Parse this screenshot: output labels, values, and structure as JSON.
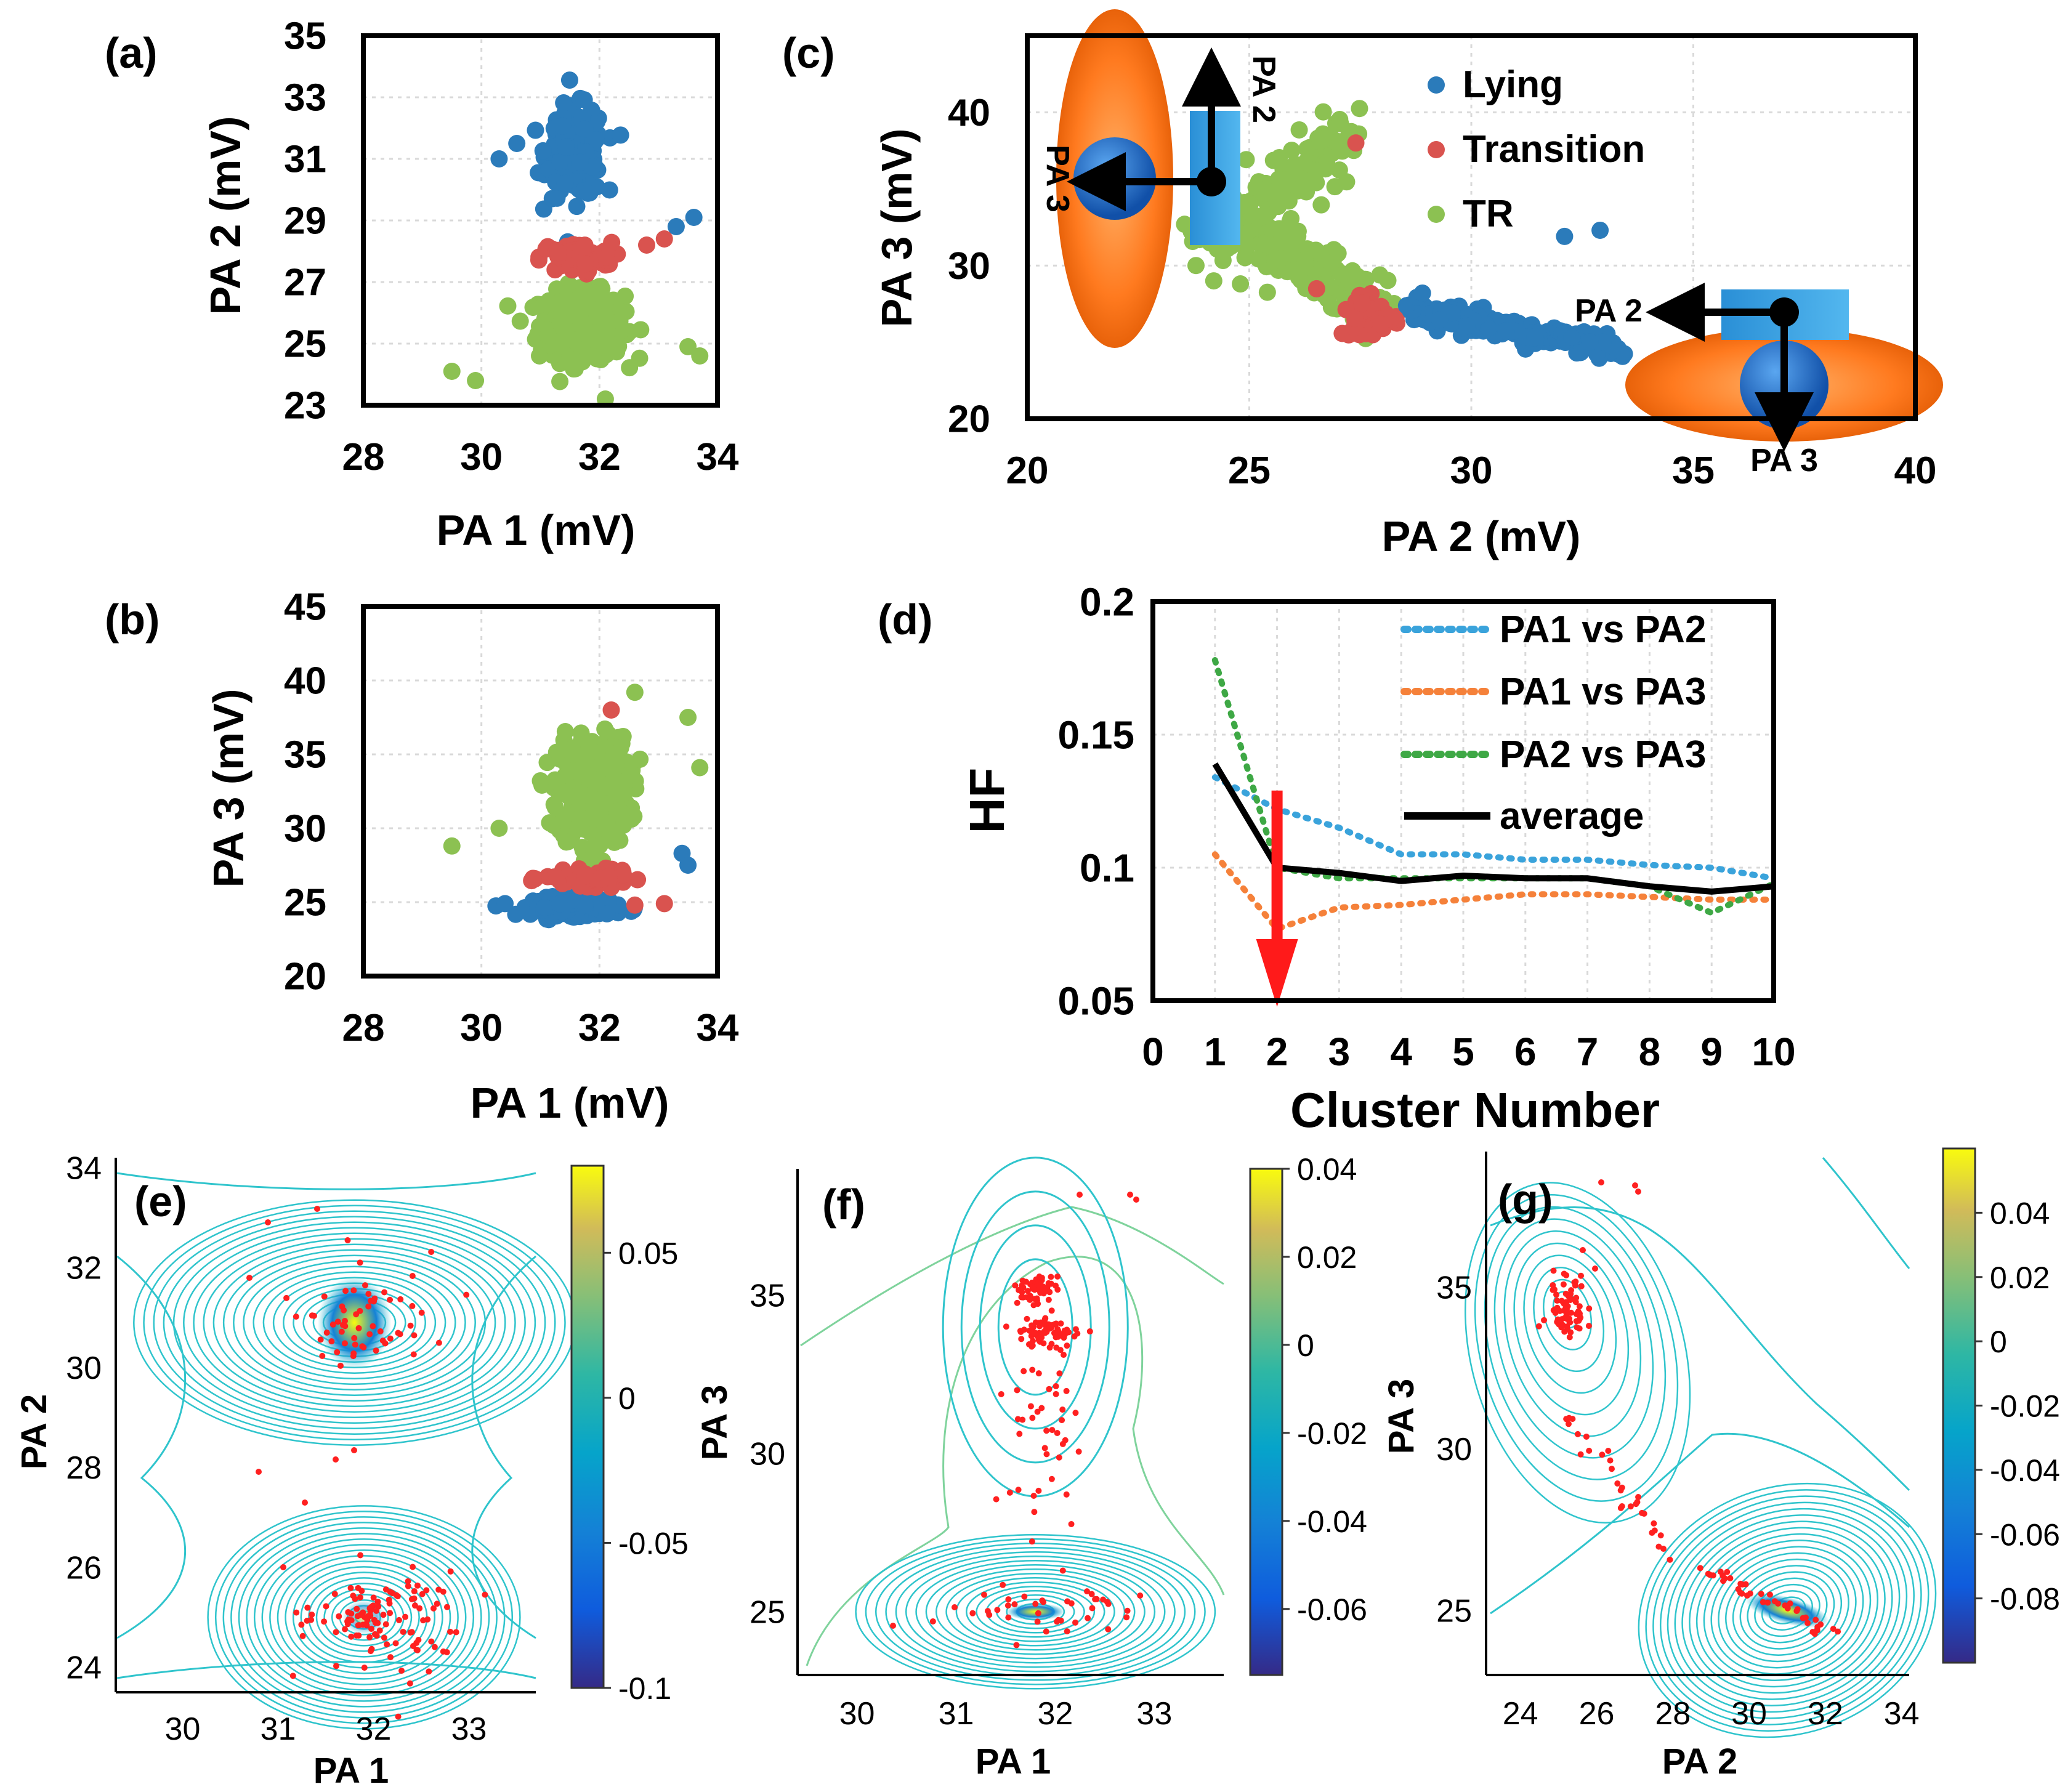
{
  "colors": {
    "lying": "#2b7bba",
    "transition": "#d9534f",
    "tr": "#8cc152",
    "pa1pa2": "#3aa3db",
    "pa1pa3": "#f5813a",
    "pa2pa3": "#3ea845",
    "average": "#000000",
    "arrow": "#ff1a1a",
    "contour": "#2fc4cc",
    "grid": "#d9d9d9"
  },
  "chart_data": [
    {
      "panel": "(a)",
      "type": "scatter",
      "xlabel": "PA 1 (mV)",
      "ylabel": "PA 2 (mV)",
      "xlim": [
        28,
        34
      ],
      "ylim": [
        23,
        35
      ],
      "xticks": [
        "28",
        "30",
        "32",
        "34"
      ],
      "yticks": [
        "23",
        "25",
        "27",
        "29",
        "31",
        "33",
        "35"
      ],
      "clusters": [
        {
          "name": "Lying",
          "color": "lying",
          "center": [
            31.6,
            31.2
          ],
          "spread": [
            0.4,
            1.2
          ],
          "count": 200,
          "extra": [
            [
              30.3,
              31.0
            ],
            [
              30.6,
              31.5
            ],
            [
              33.3,
              28.8
            ],
            [
              33.6,
              29.1
            ]
          ]
        },
        {
          "name": "Transition",
          "color": "transition",
          "center": [
            31.6,
            27.8
          ],
          "spread": [
            0.5,
            0.4
          ],
          "count": 90,
          "extra": [
            [
              32.8,
              28.2
            ],
            [
              33.1,
              28.4
            ]
          ]
        },
        {
          "name": "TR",
          "color": "tr",
          "center": [
            31.7,
            25.6
          ],
          "spread": [
            0.6,
            0.9
          ],
          "count": 340,
          "extra": [
            [
              29.5,
              24.1
            ],
            [
              29.9,
              23.8
            ],
            [
              33.5,
              24.9
            ],
            [
              33.7,
              24.6
            ],
            [
              32.1,
              23.2
            ]
          ]
        }
      ]
    },
    {
      "panel": "(b)",
      "type": "scatter",
      "xlabel": "PA 1 (mV)",
      "ylabel": "PA 3 (mV)",
      "xlim": [
        28,
        34
      ],
      "ylim": [
        20,
        45
      ],
      "xticks": [
        "28",
        "30",
        "32",
        "34"
      ],
      "yticks": [
        "20",
        "25",
        "30",
        "35",
        "40",
        "45"
      ],
      "clusters": [
        {
          "name": "Lying",
          "color": "lying",
          "center": [
            31.6,
            24.7
          ],
          "spread": [
            0.6,
            0.5
          ],
          "count": 160,
          "extra": [
            [
              33.4,
              28.3
            ],
            [
              33.5,
              27.5
            ],
            [
              30.4,
              24.9
            ]
          ]
        },
        {
          "name": "Transition",
          "color": "transition",
          "center": [
            31.8,
            26.6
          ],
          "spread": [
            0.6,
            0.4
          ],
          "count": 110,
          "extra": [
            [
              33.1,
              24.9
            ],
            [
              32.6,
              24.8
            ],
            [
              32.2,
              38.0
            ]
          ]
        },
        {
          "name": "TR",
          "color": "tr",
          "center": [
            31.9,
            32.5
          ],
          "spread": [
            0.5,
            3.0
          ],
          "count": 420,
          "extra": [
            [
              29.5,
              28.8
            ],
            [
              33.5,
              37.5
            ],
            [
              33.7,
              34.1
            ],
            [
              30.3,
              30.0
            ],
            [
              32.6,
              39.2
            ]
          ]
        }
      ]
    },
    {
      "panel": "(c)",
      "type": "scatter",
      "xlabel": "PA 2 (mV)",
      "ylabel": "PA 3 (mV)",
      "xlim": [
        20,
        40
      ],
      "ylim": [
        20,
        45
      ],
      "xticks": [
        "20",
        "25",
        "30",
        "35",
        "40"
      ],
      "yticks": [
        "20",
        "30",
        "40"
      ],
      "legend": [
        "Lying",
        "Transition",
        "TR"
      ],
      "legend_position": "top-right",
      "inset_labels": {
        "left_up": "PA 2",
        "left_left": "PA 3",
        "right_left": "PA 2",
        "right_down": "PA 3"
      }
    },
    {
      "panel": "(d)",
      "type": "line",
      "xlabel": "Cluster Number",
      "ylabel": "HF",
      "xlim": [
        0,
        10
      ],
      "ylim": [
        0.05,
        0.2
      ],
      "xticks": [
        "0",
        "1",
        "2",
        "3",
        "4",
        "5",
        "6",
        "7",
        "8",
        "9",
        "10"
      ],
      "yticks": [
        "0.05",
        "0.1",
        "0.15",
        "0.2"
      ],
      "x": [
        1,
        2,
        3,
        4,
        5,
        6,
        7,
        8,
        9,
        10
      ],
      "series": [
        {
          "name": "PA1 vs PA2",
          "color": "pa1pa2",
          "style": "dotted",
          "values": [
            0.134,
            0.122,
            0.115,
            0.105,
            0.105,
            0.103,
            0.103,
            0.101,
            0.1,
            0.096
          ]
        },
        {
          "name": "PA1 vs PA3",
          "color": "pa1pa3",
          "style": "dotted",
          "values": [
            0.105,
            0.077,
            0.085,
            0.086,
            0.088,
            0.09,
            0.09,
            0.089,
            0.088,
            0.088
          ]
        },
        {
          "name": "PA2 vs PA3",
          "color": "pa2pa3",
          "style": "dotted",
          "values": [
            0.178,
            0.1,
            0.096,
            0.096,
            0.096,
            0.096,
            0.096,
            0.093,
            0.083,
            0.094
          ]
        },
        {
          "name": "average",
          "color": "average",
          "style": "solid",
          "values": [
            0.139,
            0.1,
            0.098,
            0.095,
            0.097,
            0.096,
            0.096,
            0.093,
            0.091,
            0.093
          ]
        }
      ],
      "annotation": {
        "type": "arrow",
        "x": 2,
        "from": 0.129,
        "to": 0.05
      }
    },
    {
      "panel": "(e)",
      "type": "contour",
      "xlabel": "PA 1",
      "ylabel": "PA 2",
      "xlim": [
        29.3,
        33.7
      ],
      "ylim": [
        23.5,
        34.2
      ],
      "xticks": [
        "30",
        "31",
        "32",
        "33"
      ],
      "yticks": [
        "24",
        "26",
        "28",
        "30",
        "32",
        "34"
      ],
      "colorbar": {
        "range": [
          -0.1,
          0.08
        ],
        "ticks": [
          "0.05",
          "0",
          "-0.05",
          "-0.1"
        ]
      }
    },
    {
      "panel": "(f)",
      "type": "contour",
      "xlabel": "PA 1",
      "ylabel": "PA 3",
      "xlim": [
        29.4,
        33.7
      ],
      "ylim": [
        23.0,
        39.0
      ],
      "xticks": [
        "30",
        "31",
        "32",
        "33"
      ],
      "yticks": [
        "25",
        "30",
        "35"
      ],
      "colorbar": {
        "range": [
          -0.075,
          0.04
        ],
        "ticks": [
          "0.04",
          "0.02",
          "0",
          "-0.02",
          "-0.04",
          "-0.06"
        ]
      }
    },
    {
      "panel": "(g)",
      "type": "contour",
      "xlabel": "PA 2",
      "ylabel": "PA 3",
      "xlim": [
        23.1,
        34.2
      ],
      "ylim": [
        23.0,
        39.2
      ],
      "xticks": [
        "24",
        "26",
        "28",
        "30",
        "32",
        "34"
      ],
      "yticks": [
        "25",
        "30",
        "35"
      ],
      "colorbar": {
        "range": [
          -0.1,
          0.06
        ],
        "ticks": [
          "0.04",
          "0.02",
          "0",
          "-0.02",
          "-0.04",
          "-0.06",
          "-0.08"
        ]
      }
    }
  ]
}
